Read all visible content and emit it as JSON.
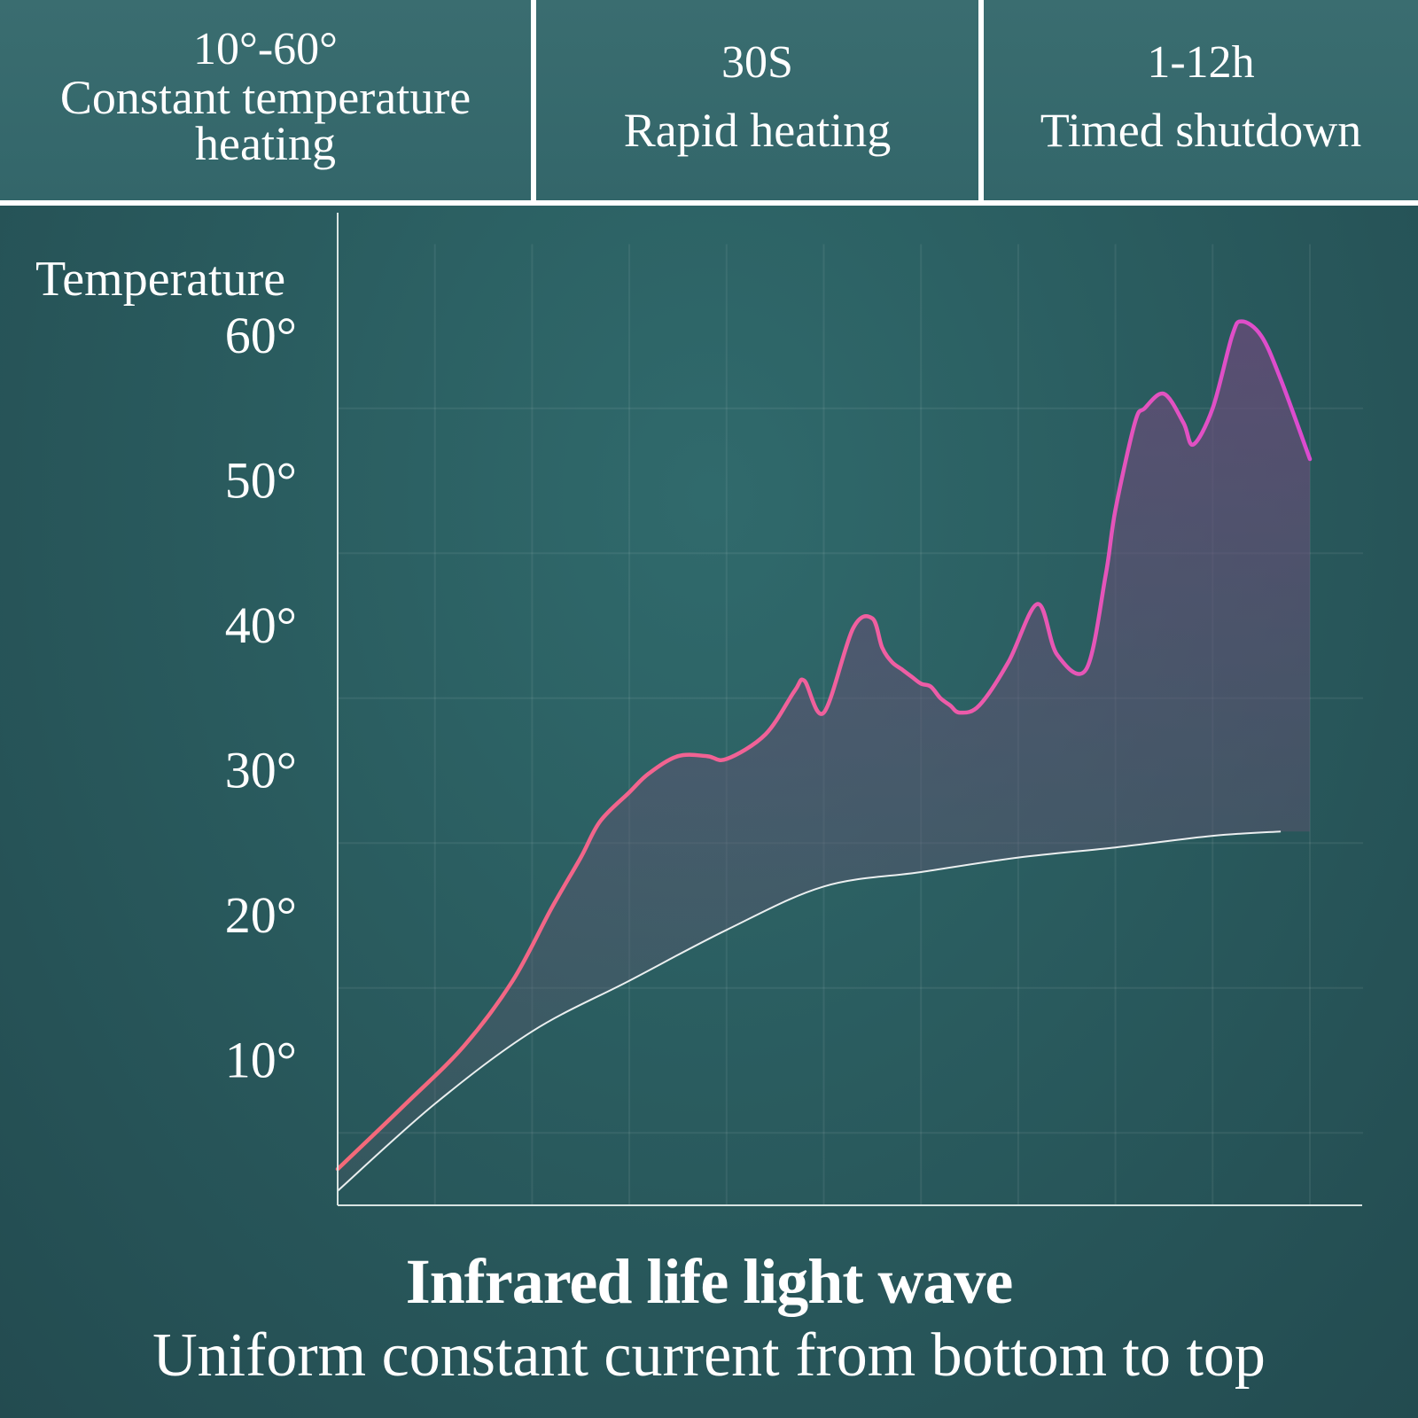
{
  "features": [
    {
      "value": "10°-60°",
      "description": "Constant temperature heating"
    },
    {
      "value": "30S",
      "description": "Rapid heating"
    },
    {
      "value": "1-12h",
      "description": "Timed shutdown"
    }
  ],
  "caption": {
    "title": "Infrared life light wave",
    "subtitle": "Uniform constant current from bottom to top"
  },
  "colors": {
    "background": "#2a5c5f",
    "curve_start": "#f06a7f",
    "curve_end": "#e04cc8",
    "baseline_curve": "#ffffff"
  },
  "chart_data": {
    "type": "line",
    "title": "",
    "xlabel": "",
    "ylabel": "Temperature",
    "ylim": [
      0,
      70
    ],
    "xlim": [
      0,
      100
    ],
    "yticks": [
      10,
      20,
      30,
      40,
      50,
      60
    ],
    "ytick_labels": [
      "10°",
      "20°",
      "30°",
      "40°",
      "50°",
      "60°"
    ],
    "grid": true,
    "series": [
      {
        "style": "pink-fill",
        "x": [
          0,
          7,
          13,
          18,
          22,
          25,
          27,
          30,
          32,
          35,
          38,
          40,
          44,
          47,
          48,
          50,
          53,
          55,
          56,
          57,
          58,
          59,
          60,
          61,
          62,
          63,
          64,
          66,
          69,
          72,
          74,
          77,
          79,
          80,
          82,
          83,
          85,
          87,
          88,
          90,
          92,
          93,
          95,
          97,
          100
        ],
        "y": [
          2.5,
          7,
          11,
          15.5,
          20.5,
          24,
          26.5,
          28.5,
          29.8,
          31,
          31,
          30.8,
          32.5,
          35.5,
          36.2,
          34,
          39.8,
          40.5,
          38.5,
          37.5,
          37,
          36.5,
          36,
          35.8,
          35,
          34.5,
          34,
          34.5,
          37.5,
          41.5,
          38,
          37,
          43.5,
          48,
          54,
          55,
          56,
          54,
          52.5,
          55,
          60,
          61,
          60,
          57,
          51.5
        ]
      },
      {
        "style": "white-line",
        "x": [
          0,
          10,
          20,
          30,
          40,
          50,
          60,
          70,
          80,
          90,
          97
        ],
        "y": [
          1,
          7,
          12,
          15.5,
          19,
          22,
          23,
          24,
          24.7,
          25.5,
          25.8
        ]
      }
    ]
  }
}
